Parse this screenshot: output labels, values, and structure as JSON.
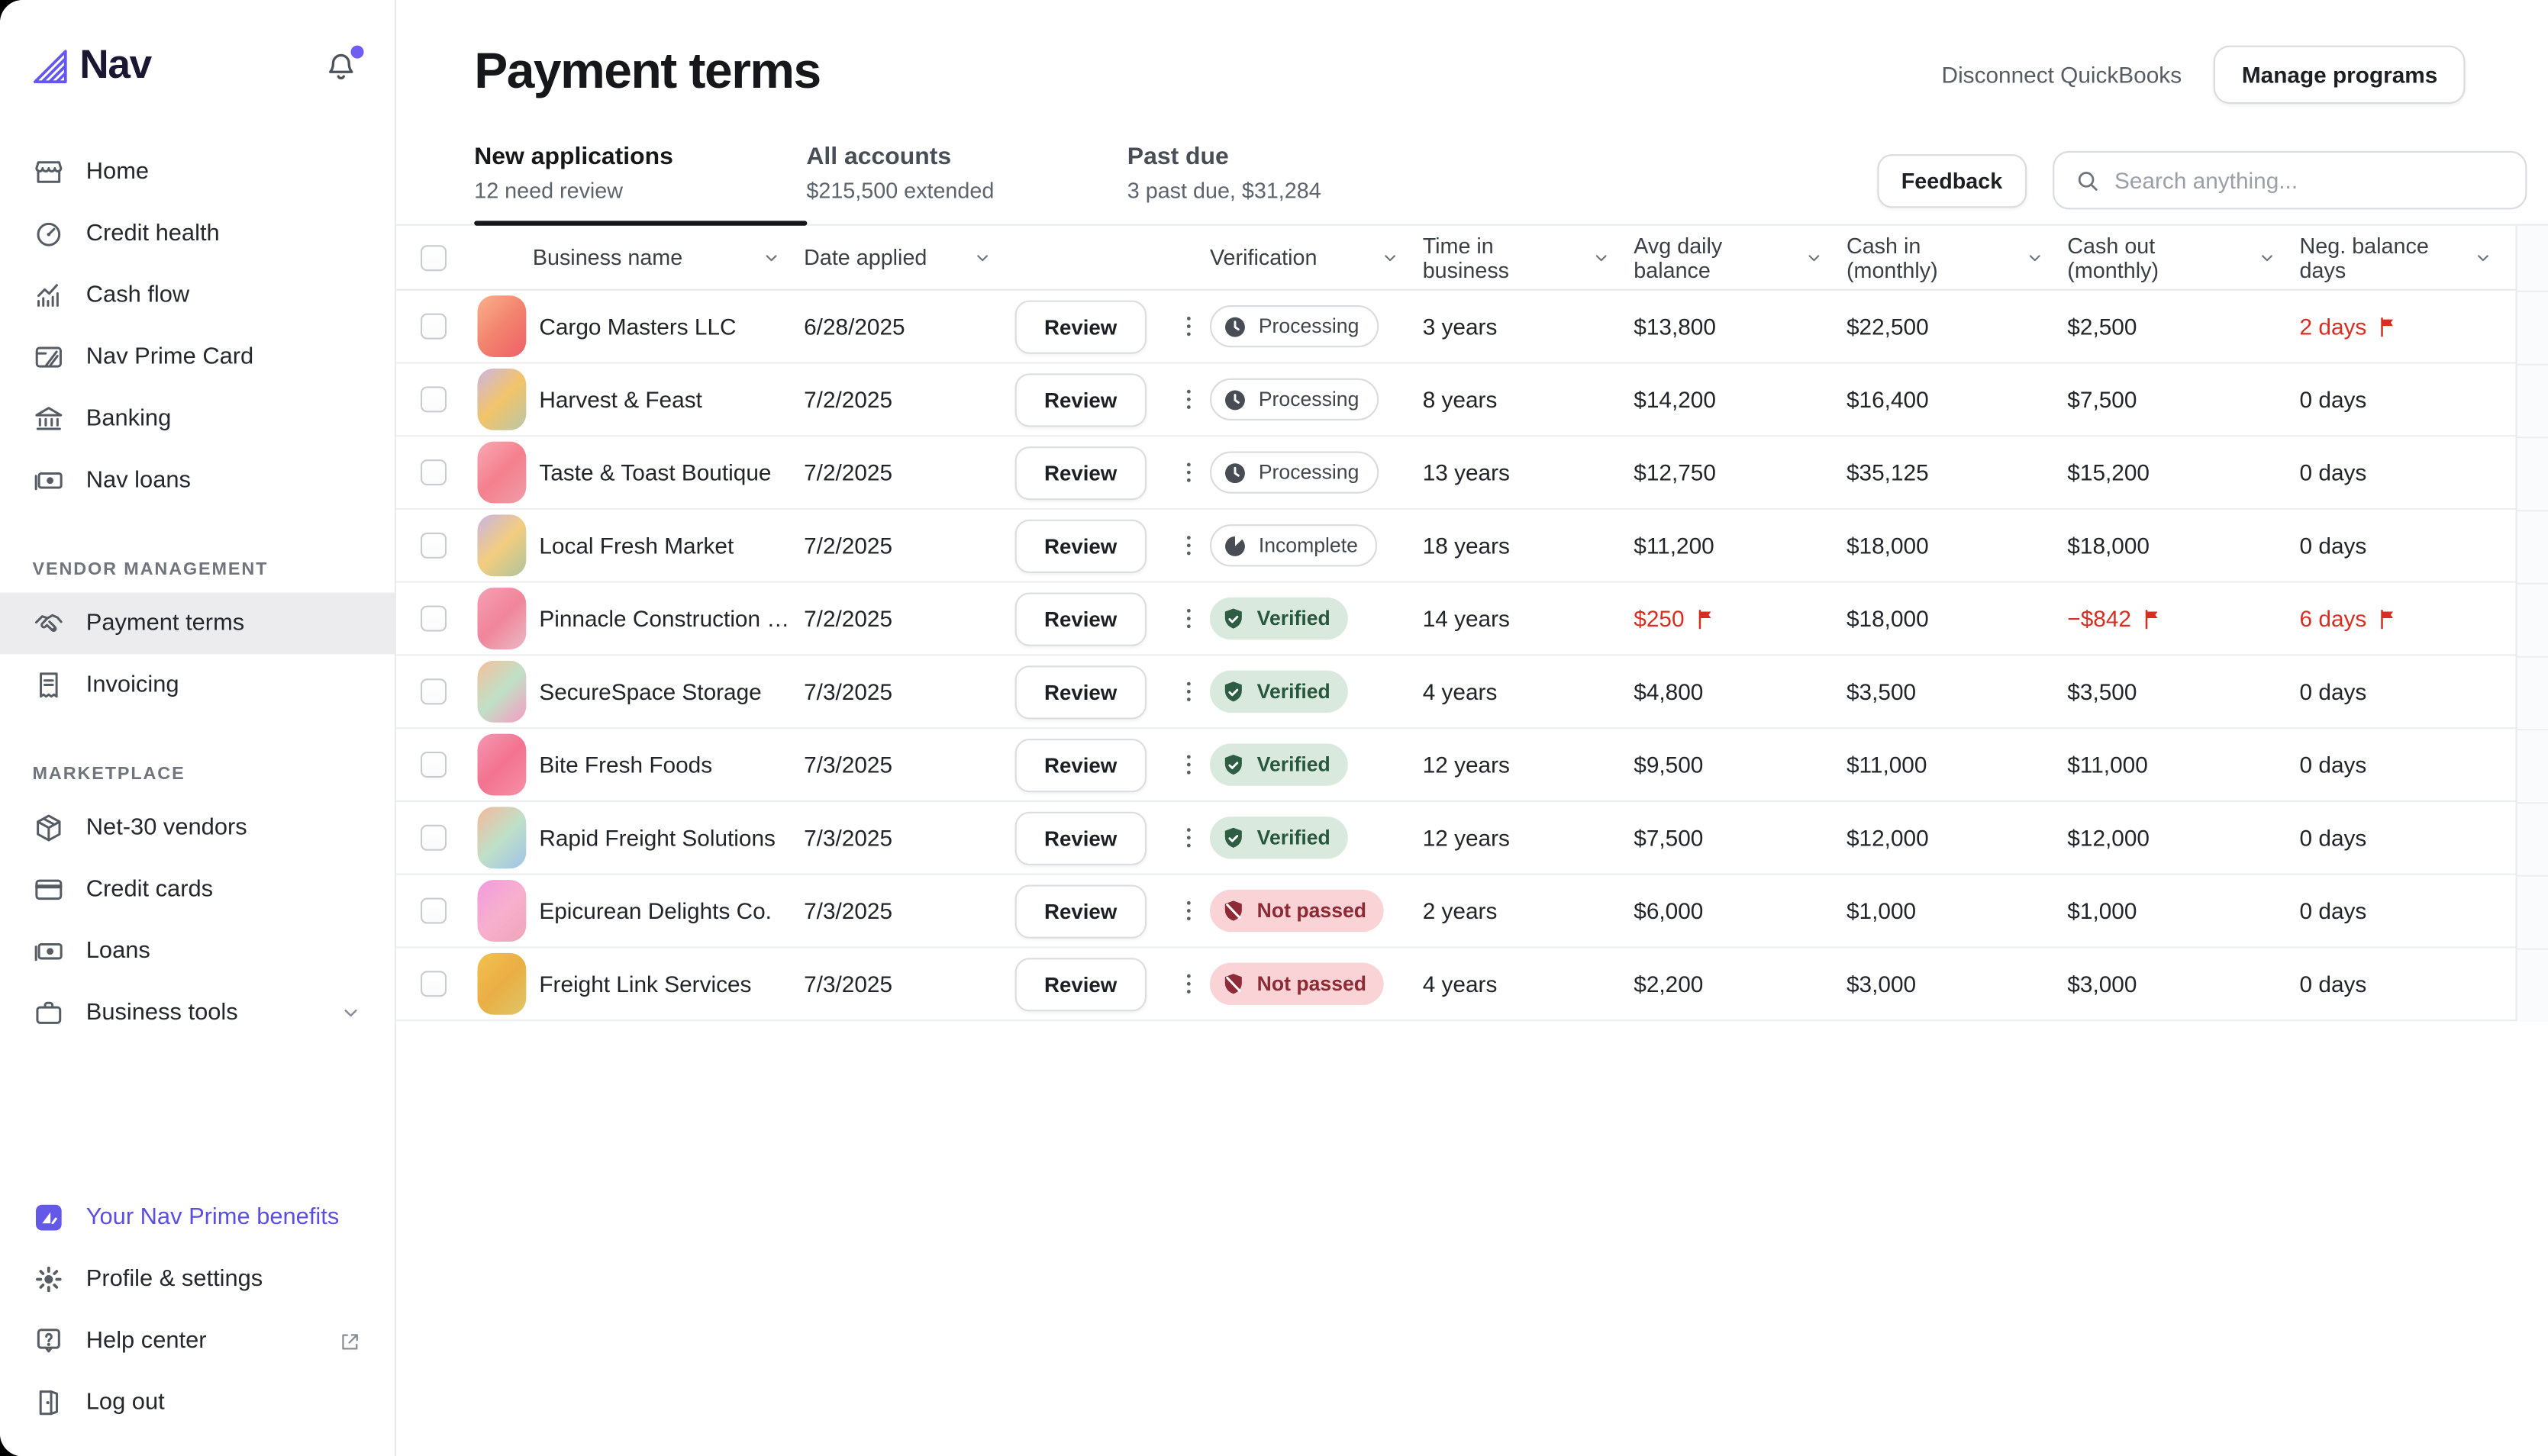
{
  "colors": {
    "accent_purple": "#6456ee",
    "flag_red": "#d92d21",
    "verified_bg": "#d9e9dd",
    "verified_fg": "#27573d",
    "not_passed_bg": "#f9d3d6",
    "not_passed_fg": "#8c2a35",
    "neutral_icon": "#474c55",
    "active_tab_underline": "#15171b"
  },
  "sidebar": {
    "logo": "Nav",
    "nav_main": [
      {
        "label": "Home",
        "icon": "storefront"
      },
      {
        "label": "Credit health",
        "icon": "gauge"
      },
      {
        "label": "Cash flow",
        "icon": "bar-chart"
      },
      {
        "label": "Nav Prime Card",
        "icon": "prime-card"
      },
      {
        "label": "Banking",
        "icon": "bank"
      },
      {
        "label": "Nav loans",
        "icon": "banknote"
      }
    ],
    "sections": [
      {
        "title": "VENDOR MANAGEMENT",
        "items": [
          {
            "label": "Payment terms",
            "icon": "handshake",
            "active": true
          },
          {
            "label": "Invoicing",
            "icon": "receipt"
          }
        ]
      },
      {
        "title": "MARKETPLACE",
        "items": [
          {
            "label": "Net-30 vendors",
            "icon": "package"
          },
          {
            "label": "Credit cards",
            "icon": "credit-card"
          },
          {
            "label": "Loans",
            "icon": "banknote"
          },
          {
            "label": "Business tools",
            "icon": "briefcase",
            "chevron": true
          }
        ]
      }
    ],
    "footer": [
      {
        "label": "Your Nav Prime benefits",
        "icon": "nav-prime",
        "accent": true
      },
      {
        "label": "Profile & settings",
        "icon": "gear"
      },
      {
        "label": "Help center",
        "icon": "help",
        "external": true
      },
      {
        "label": "Log out",
        "icon": "door"
      }
    ]
  },
  "header": {
    "title": "Payment terms",
    "disconnect_label": "Disconnect QuickBooks",
    "manage_label": "Manage programs"
  },
  "tabs": [
    {
      "label": "New applications",
      "sub": "12 need review",
      "active": true
    },
    {
      "label": "All accounts",
      "sub": "$215,500 extended",
      "active": false
    },
    {
      "label": "Past due",
      "sub": "3 past due, $31,284",
      "active": false
    }
  ],
  "toolbar": {
    "feedback_label": "Feedback",
    "search_placeholder": "Search anything..."
  },
  "table": {
    "review_label": "Review",
    "columns": [
      {
        "label": "Business name",
        "sortable": true
      },
      {
        "label": "Date applied",
        "sortable": true
      },
      {
        "label": "",
        "sortable": false
      },
      {
        "label": "",
        "sortable": false
      },
      {
        "label": "Verification",
        "sortable": true
      },
      {
        "label": "Time in business",
        "sortable": true
      },
      {
        "label": "Avg daily balance",
        "sortable": true
      },
      {
        "label": "Cash in (monthly)",
        "sortable": true
      },
      {
        "label": "Cash out (monthly)",
        "sortable": true
      },
      {
        "label": "Neg. balance days",
        "sortable": true
      }
    ],
    "statuses": {
      "processing": {
        "label": "Processing",
        "style": "neutral",
        "icon": "clock"
      },
      "incomplete": {
        "label": "Incomplete",
        "style": "neutral",
        "icon": "pie"
      },
      "verified": {
        "label": "Verified",
        "style": "good",
        "icon": "shield-check"
      },
      "not_passed": {
        "label": "Not passed",
        "style": "bad",
        "icon": "shield-off"
      }
    },
    "rows": [
      {
        "name": "Cargo Masters LLC",
        "date": "6/28/2025",
        "status": "processing",
        "time": "3 years",
        "avg": "$13,800",
        "avg_flag": false,
        "cash_in": "$22,500",
        "cash_out": "$2,500",
        "cash_out_flag": false,
        "neg": "2 days",
        "neg_flag": true,
        "avatar_colors": [
          "#f9b18c",
          "#f2836e",
          "#ef5f6a"
        ]
      },
      {
        "name": "Harvest & Feast",
        "date": "7/2/2025",
        "status": "processing",
        "time": "8 years",
        "avg": "$14,200",
        "avg_flag": false,
        "cash_in": "$16,400",
        "cash_out": "$7,500",
        "cash_out_flag": false,
        "neg": "0 days",
        "neg_flag": false,
        "avatar_colors": [
          "#cdb6e2",
          "#f3c469",
          "#b9c6a9"
        ]
      },
      {
        "name": "Taste & Toast Boutique",
        "date": "7/2/2025",
        "status": "processing",
        "time": "13 years",
        "avg": "$12,750",
        "avg_flag": false,
        "cash_in": "$35,125",
        "cash_out": "$15,200",
        "cash_out_flag": false,
        "neg": "0 days",
        "neg_flag": false,
        "avatar_colors": [
          "#f8a9b4",
          "#f4808d",
          "#f09caa"
        ]
      },
      {
        "name": "Local Fresh Market",
        "date": "7/2/2025",
        "status": "incomplete",
        "time": "18 years",
        "avg": "$11,200",
        "avg_flag": false,
        "cash_in": "$18,000",
        "cash_out": "$18,000",
        "cash_out_flag": false,
        "neg": "0 days",
        "neg_flag": false,
        "avatar_colors": [
          "#c9b4e4",
          "#f3cd7e",
          "#aec49d"
        ]
      },
      {
        "name": "Pinnacle Construction Gr...",
        "date": "7/2/2025",
        "status": "verified",
        "time": "14 years",
        "avg": "$250",
        "avg_flag": true,
        "cash_in": "$18,000",
        "cash_out": "−$842",
        "cash_out_flag": true,
        "neg": "6 days",
        "neg_flag": true,
        "avatar_colors": [
          "#f4a0b5",
          "#f1859a",
          "#e9b9c6"
        ]
      },
      {
        "name": "SecureSpace Storage",
        "date": "7/3/2025",
        "status": "verified",
        "time": "4 years",
        "avg": "$4,800",
        "avg_flag": false,
        "cash_in": "$3,500",
        "cash_out": "$3,500",
        "cash_out_flag": false,
        "neg": "0 days",
        "neg_flag": false,
        "avatar_colors": [
          "#f6c09a",
          "#bfe0c8",
          "#f79bc0"
        ]
      },
      {
        "name": "Bite Fresh Foods",
        "date": "7/3/2025",
        "status": "verified",
        "time": "12 years",
        "avg": "$9,500",
        "avg_flag": false,
        "cash_in": "$11,000",
        "cash_out": "$11,000",
        "cash_out_flag": false,
        "neg": "0 days",
        "neg_flag": false,
        "avatar_colors": [
          "#f597b4",
          "#f2738f",
          "#f78fa6"
        ]
      },
      {
        "name": "Rapid Freight Solutions",
        "date": "7/3/2025",
        "status": "verified",
        "time": "12 years",
        "avg": "$7,500",
        "avg_flag": false,
        "cash_in": "$12,000",
        "cash_out": "$12,000",
        "cash_out_flag": false,
        "neg": "0 days",
        "neg_flag": false,
        "avatar_colors": [
          "#f6b89a",
          "#bfe0c8",
          "#9fc3e8"
        ]
      },
      {
        "name": "Epicurean Delights Co.",
        "date": "7/3/2025",
        "status": "not_passed",
        "time": "2 years",
        "avg": "$6,000",
        "avg_flag": false,
        "cash_in": "$1,000",
        "cash_out": "$1,000",
        "cash_out_flag": false,
        "neg": "0 days",
        "neg_flag": false,
        "avatar_colors": [
          "#f19ae0",
          "#f7b0cd",
          "#efa4b8"
        ]
      },
      {
        "name": "Freight Link Services",
        "date": "7/3/2025",
        "status": "not_passed",
        "time": "4 years",
        "avg": "$2,200",
        "avg_flag": false,
        "cash_in": "$3,000",
        "cash_out": "$3,000",
        "cash_out_flag": false,
        "neg": "0 days",
        "neg_flag": false,
        "avatar_colors": [
          "#f2c24e",
          "#eaae45",
          "#dfc668"
        ]
      }
    ]
  }
}
